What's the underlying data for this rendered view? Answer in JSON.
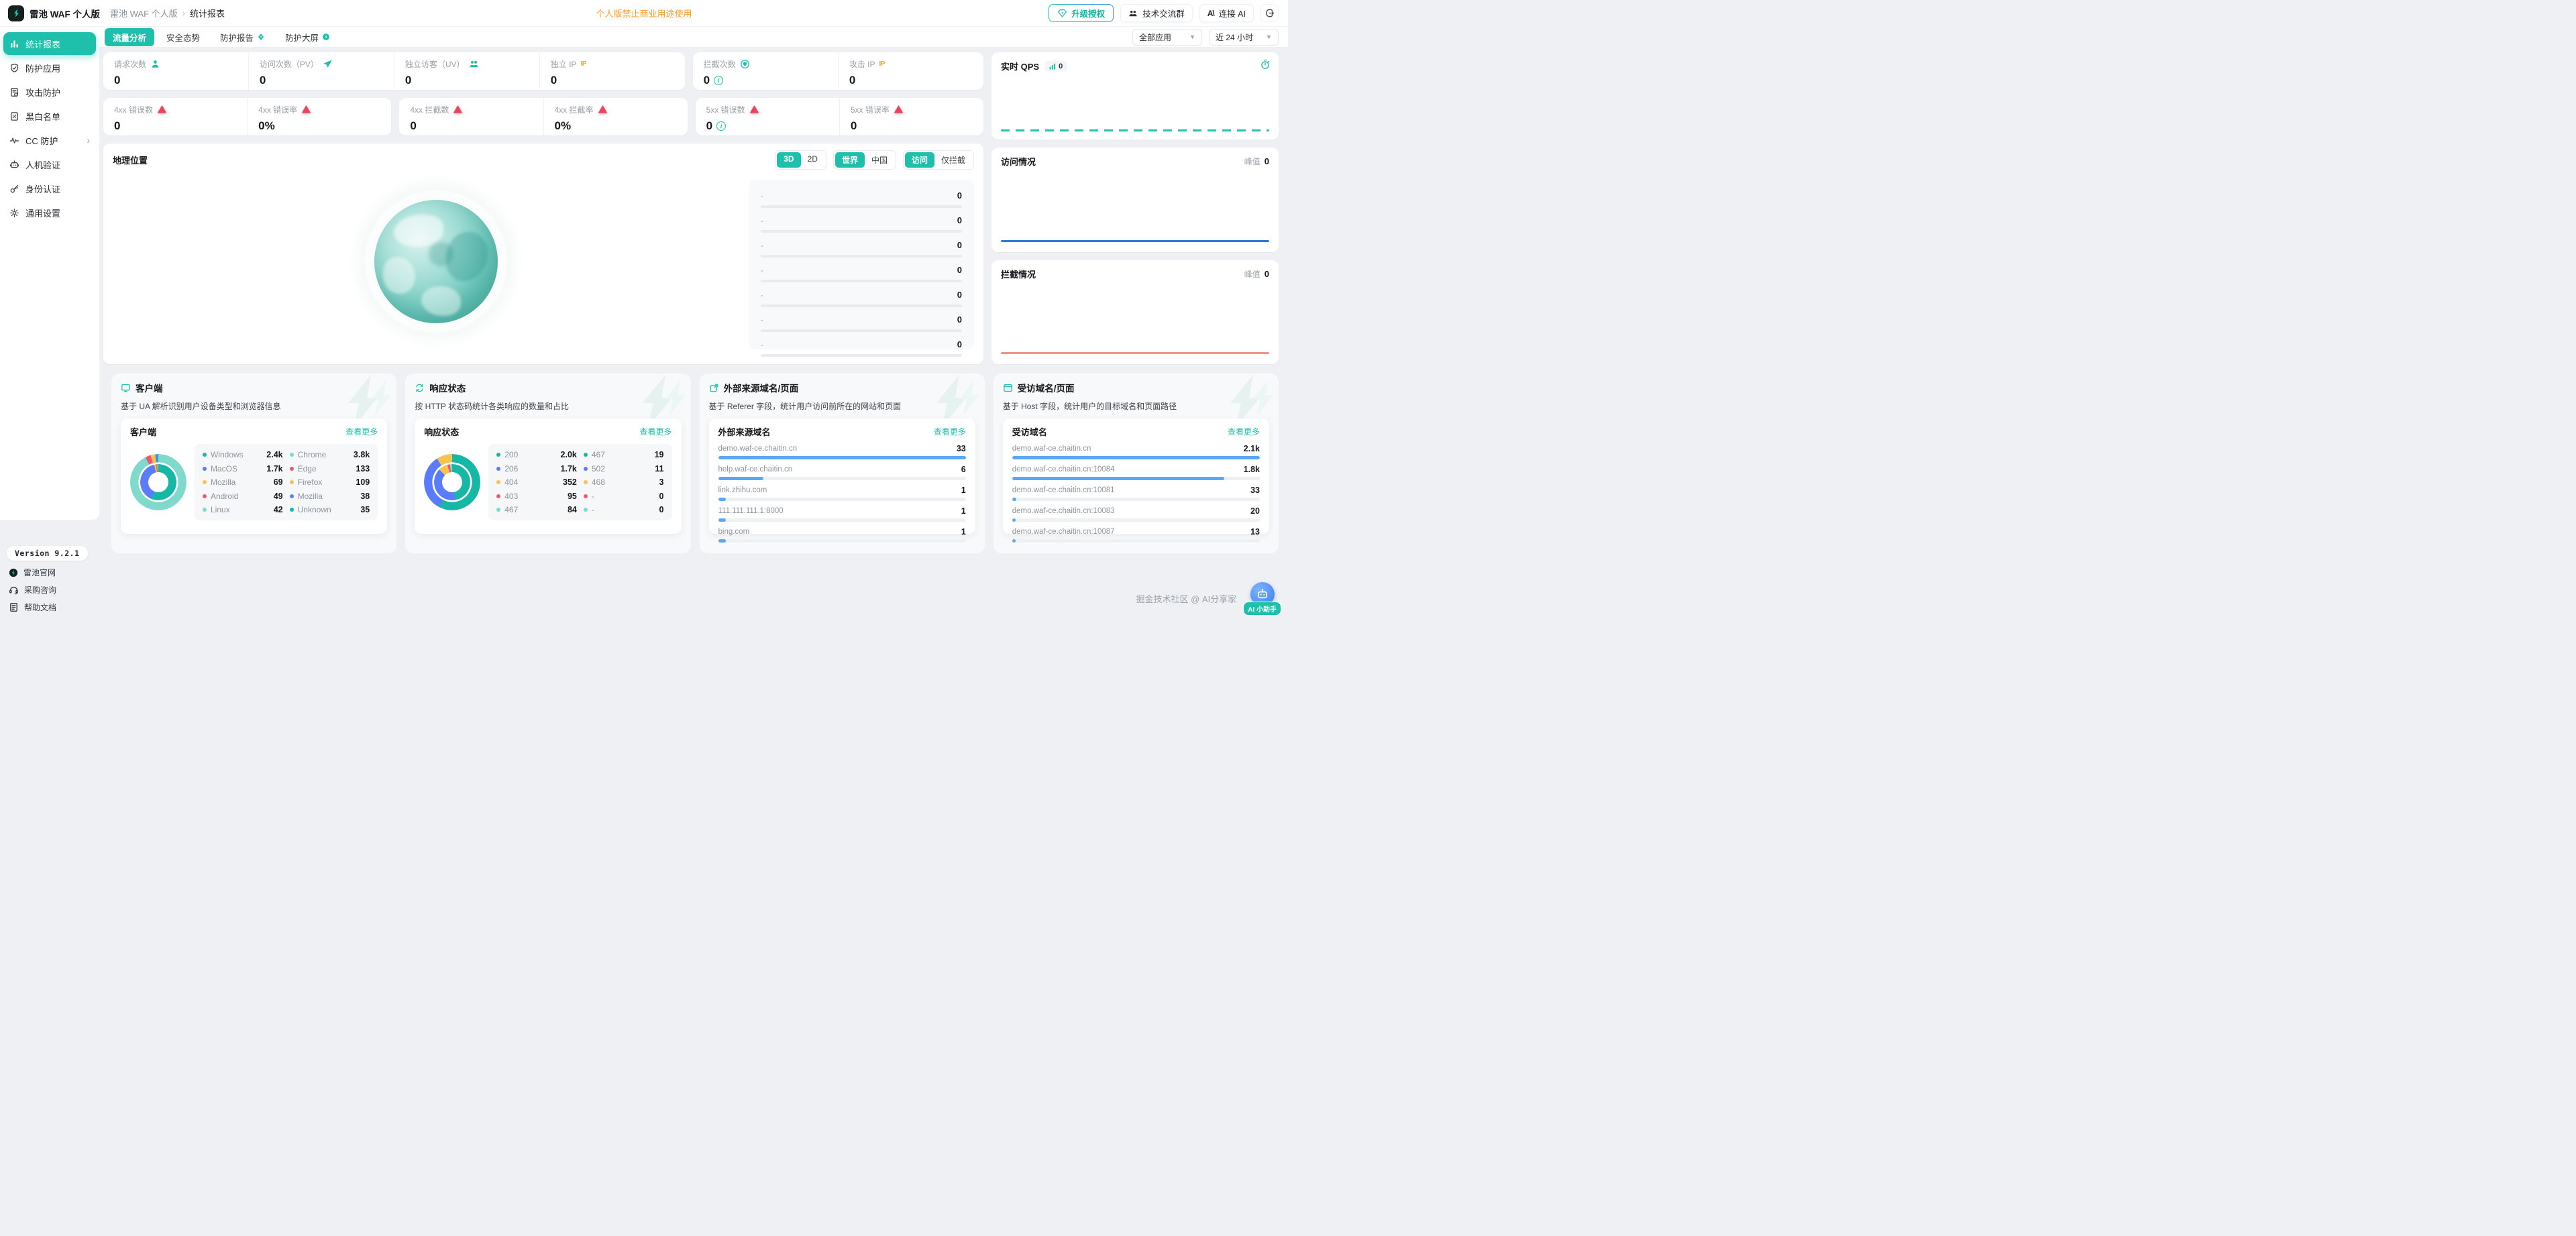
{
  "brand": {
    "name": "雷池 WAF 个人版"
  },
  "topbar": {
    "breadcrumb": [
      "雷池 WAF 个人版",
      "统计报表"
    ],
    "separator": "›",
    "warning": "个人版禁止商业用途使用",
    "upgrade_label": "升级授权",
    "community_label": "技术交流群",
    "ai_logo": "A\\",
    "connect_ai_label": "连接 AI"
  },
  "tabs": [
    {
      "key": "traffic",
      "label": "流量分析",
      "active": true,
      "badge": null
    },
    {
      "key": "security",
      "label": "安全态势",
      "active": false,
      "badge": null
    },
    {
      "key": "report",
      "label": "防护报告",
      "active": false,
      "badge": "bolt"
    },
    {
      "key": "screen",
      "label": "防护大屏",
      "active": false,
      "badge": "bolt-circle"
    }
  ],
  "filters": {
    "app": "全部应用",
    "range": "近 24 小时"
  },
  "sidebar": {
    "items": [
      {
        "key": "reports",
        "label": "统计报表",
        "icon": "chart",
        "active": true
      },
      {
        "key": "apps",
        "label": "防护应用",
        "icon": "shield-check",
        "active": false
      },
      {
        "key": "attack",
        "label": "攻击防护",
        "icon": "doc-refresh",
        "active": false
      },
      {
        "key": "lists",
        "label": "黑白名单",
        "icon": "list-percent",
        "active": false
      },
      {
        "key": "cc",
        "label": "CC 防护",
        "icon": "pulse",
        "active": false,
        "chevron": true
      },
      {
        "key": "captcha",
        "label": "人机验证",
        "icon": "robot",
        "active": false
      },
      {
        "key": "auth",
        "label": "身份认证",
        "icon": "key",
        "active": false
      },
      {
        "key": "settings",
        "label": "通用设置",
        "icon": "gear",
        "active": false
      }
    ],
    "version": "Version 9.2.1",
    "links": [
      {
        "key": "website",
        "label": "雷池官网",
        "icon": "logo"
      },
      {
        "key": "purchase",
        "label": "采购咨询",
        "icon": "headset"
      },
      {
        "key": "docs",
        "label": "帮助文档",
        "icon": "doc"
      }
    ]
  },
  "stats": {
    "row1": [
      {
        "cells": [
          {
            "label": "请求次数",
            "icon": "user",
            "value": "0"
          },
          {
            "label": "访问次数（PV）",
            "icon": "plane",
            "value": "0"
          },
          {
            "label": "独立访客（UV）",
            "icon": "users",
            "value": "0"
          },
          {
            "label": "独立 IP",
            "icon": "ip",
            "value": "0"
          }
        ]
      },
      {
        "cells": [
          {
            "label": "拦截次数",
            "icon": "shield-circle",
            "value": "0",
            "info": true
          },
          {
            "label": "攻击 IP",
            "icon": "ip",
            "value": "0"
          }
        ]
      }
    ],
    "row2": [
      {
        "cells": [
          {
            "label": "4xx 错误数",
            "icon": "alert",
            "value": "0"
          },
          {
            "label": "4xx 错误率",
            "icon": "alert",
            "value": "0%"
          }
        ]
      },
      {
        "cells": [
          {
            "label": "4xx 拦截数",
            "icon": "alert",
            "value": "0"
          },
          {
            "label": "4xx 拦截率",
            "icon": "alert",
            "value": "0%"
          }
        ]
      },
      {
        "cells": [
          {
            "label": "5xx 错误数",
            "icon": "alert",
            "value": "0",
            "info": true
          },
          {
            "label": "5xx 错误率",
            "icon": "alert",
            "value": "0"
          }
        ]
      }
    ]
  },
  "geo": {
    "title": "地理位置",
    "toggles": [
      {
        "name": "dimension",
        "options": [
          "3D",
          "2D"
        ],
        "active": 0
      },
      {
        "name": "region",
        "options": [
          "世界",
          "中国"
        ],
        "active": 0
      },
      {
        "name": "metric",
        "options": [
          "访问",
          "仅拦截"
        ],
        "active": 0
      }
    ],
    "rows": [
      {
        "name": "-",
        "value": "0"
      },
      {
        "name": "-",
        "value": "0"
      },
      {
        "name": "-",
        "value": "0"
      },
      {
        "name": "-",
        "value": "0"
      },
      {
        "name": "-",
        "value": "0"
      },
      {
        "name": "-",
        "value": "0"
      },
      {
        "name": "-",
        "value": "0"
      }
    ]
  },
  "qps": {
    "title": "实时 QPS",
    "badge_value": "0",
    "line_color": "#1fc0ae"
  },
  "visit": {
    "title": "访问情况",
    "peak_label": "峰值",
    "peak_value": "0",
    "line_color": "#2a7dd2"
  },
  "block": {
    "title": "拦截情况",
    "peak_label": "峰值",
    "peak_value": "0",
    "line_color": "#f2928c"
  },
  "cards": [
    {
      "key": "client",
      "icon": "monitor",
      "title": "客户端",
      "desc": "基于 UA 解析识别用户设备类型和浏览器信息",
      "panel_title": "客户端",
      "more_label": "查看更多",
      "type": "donut",
      "columns": [
        [
          {
            "label": "Windows",
            "value": "2.4k",
            "num": 2400,
            "color": "#16b8a5"
          },
          {
            "label": "MacOS",
            "value": "1.7k",
            "num": 1700,
            "color": "#5b7cfa"
          },
          {
            "label": "Mozilla",
            "value": "69",
            "num": 69,
            "color": "#f6c44e"
          },
          {
            "label": "Android",
            "value": "49",
            "num": 49,
            "color": "#f2566e"
          },
          {
            "label": "Linux",
            "value": "42",
            "num": 42,
            "color": "#7fd9cc"
          }
        ],
        [
          {
            "label": "Chrome",
            "value": "3.8k",
            "num": 3800,
            "color": "#7fd9cc"
          },
          {
            "label": "Edge",
            "value": "133",
            "num": 133,
            "color": "#f2566e"
          },
          {
            "label": "Firefox",
            "value": "109",
            "num": 109,
            "color": "#f6c44e"
          },
          {
            "label": "Mozilla",
            "value": "38",
            "num": 38,
            "color": "#5b7cfa"
          },
          {
            "label": "Unknown",
            "value": "35",
            "num": 35,
            "color": "#16b8a5"
          }
        ]
      ]
    },
    {
      "key": "status",
      "icon": "loop",
      "title": "响应状态",
      "desc": "按 HTTP 状态码统计各类响应的数量和占比",
      "panel_title": "响应状态",
      "more_label": "查看更多",
      "type": "donut",
      "columns": [
        [
          {
            "label": "200",
            "value": "2.0k",
            "num": 2000,
            "color": "#16b8a5"
          },
          {
            "label": "206",
            "value": "1.7k",
            "num": 1700,
            "color": "#5b7cfa"
          },
          {
            "label": "404",
            "value": "352",
            "num": 352,
            "color": "#f6c44e"
          },
          {
            "label": "403",
            "value": "95",
            "num": 95,
            "color": "#f2566e"
          },
          {
            "label": "467",
            "value": "84",
            "num": 84,
            "color": "#7fd9cc"
          }
        ],
        [
          {
            "label": "467",
            "value": "19",
            "num": 19,
            "color": "#16b8a5"
          },
          {
            "label": "502",
            "value": "11",
            "num": 11,
            "color": "#5b7cfa"
          },
          {
            "label": "468",
            "value": "3",
            "num": 3,
            "color": "#f6c44e"
          },
          {
            "label": "-",
            "value": "0",
            "num": 0,
            "color": "#f2566e"
          },
          {
            "label": "-",
            "value": "0",
            "num": 0,
            "color": "#7fd9cc"
          }
        ]
      ]
    },
    {
      "key": "referer",
      "icon": "external",
      "title": "外部来源域名/页面",
      "desc": "基于 Referer 字段，统计用户访问前所在的网站和页面",
      "panel_title": "外部来源域名",
      "more_label": "查看更多",
      "type": "bars",
      "bar_color": "#57a8f5",
      "rows": [
        {
          "label": "demo.waf-ce.chaitin.cn",
          "value": "33",
          "num": 33
        },
        {
          "label": "help.waf-ce.chaitin.cn",
          "value": "6",
          "num": 6
        },
        {
          "label": "link.zhihu.com",
          "value": "1",
          "num": 1
        },
        {
          "label": "111.111.111.1:8000",
          "value": "1",
          "num": 1
        },
        {
          "label": "bing.com",
          "value": "1",
          "num": 1
        }
      ]
    },
    {
      "key": "host",
      "icon": "browser",
      "title": "受访域名/页面",
      "desc": "基于 Host 字段，统计用户的目标域名和页面路径",
      "panel_title": "受访域名",
      "more_label": "查看更多",
      "type": "bars",
      "bar_color": "#57a8f5",
      "rows": [
        {
          "label": "demo.waf-ce.chaitin.cn",
          "value": "2.1k",
          "num": 2100
        },
        {
          "label": "demo.waf-ce.chaitin.cn:10084",
          "value": "1.8k",
          "num": 1800
        },
        {
          "label": "demo.waf-ce.chaitin.cn:10081",
          "value": "33",
          "num": 33
        },
        {
          "label": "demo.waf-ce.chaitin.cn:10083",
          "value": "20",
          "num": 20
        },
        {
          "label": "demo.waf-ce.chaitin.cn:10087",
          "value": "13",
          "num": 13
        }
      ]
    }
  ],
  "footer": {
    "watermark": "掘金技术社区 @ AI分享家",
    "assistant": "AI 小助手"
  },
  "colors": {
    "accent": "#1ec0ac",
    "orange": "#ff9d2b",
    "bar_blue": "#57a8f5",
    "visit_line": "#2a7dd2",
    "block_line": "#f2928c",
    "donut_palette": [
      "#16b8a5",
      "#5b7cfa",
      "#f6c44e",
      "#f2566e",
      "#7fd9cc"
    ]
  }
}
